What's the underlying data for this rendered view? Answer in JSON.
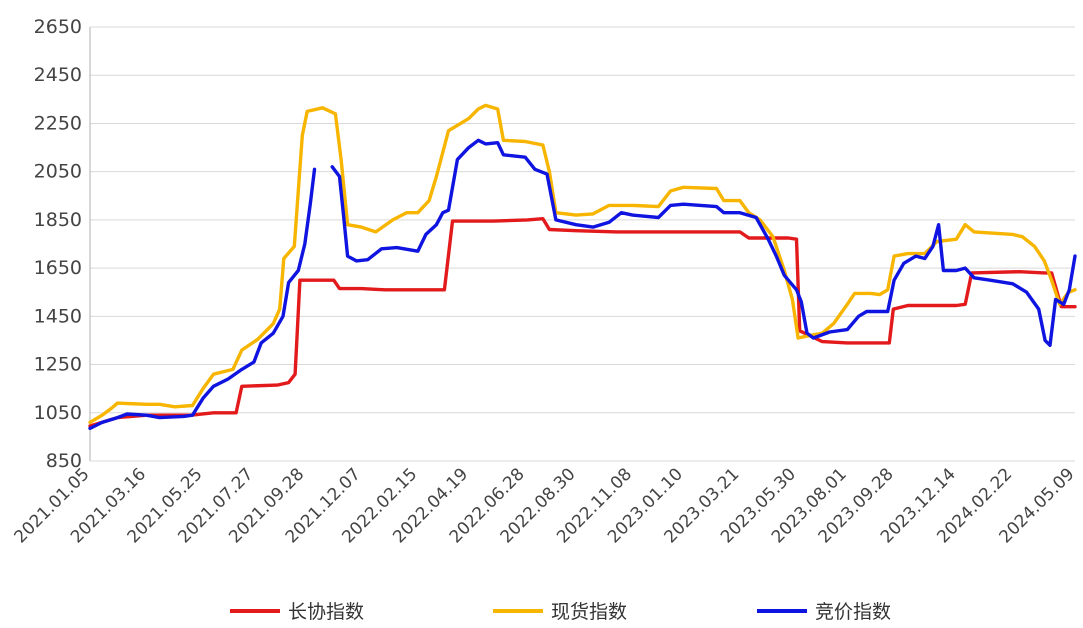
{
  "chart_data": {
    "type": "line",
    "title": "",
    "xlabel": "",
    "ylabel": "",
    "ylim": [
      850,
      2650
    ],
    "yticks": [
      850,
      1050,
      1250,
      1450,
      1650,
      1850,
      2050,
      2250,
      2450,
      2650
    ],
    "date_range": [
      "2021.01.05",
      "2024.05.09"
    ],
    "x_tick_labels": [
      "2021.01.05",
      "2021.03.16",
      "2021.05.25",
      "2021.07.27",
      "2021.09.28",
      "2021.12.07",
      "2022.02.15",
      "2022.04.19",
      "2022.06.28",
      "2022.08.30",
      "2022.11.08",
      "2023.01.10",
      "2023.03.21",
      "2023.05.30",
      "2023.08.01",
      "2023.09.28",
      "2023.12.14",
      "2024.02.22",
      "2024.05.09"
    ],
    "grid": true,
    "legend_position": "bottom",
    "series": [
      {
        "name": "长协指数",
        "color": "#e31a1c",
        "points": [
          [
            "2021.01.05",
            995
          ],
          [
            "2021.02.08",
            1030
          ],
          [
            "2021.03.16",
            1040
          ],
          [
            "2021.05.10",
            1040
          ],
          [
            "2021.06.07",
            1050
          ],
          [
            "2021.07.05",
            1050
          ],
          [
            "2021.07.12",
            1160
          ],
          [
            "2021.08.25",
            1165
          ],
          [
            "2021.09.08",
            1175
          ],
          [
            "2021.09.16",
            1210
          ],
          [
            "2021.09.22",
            1600
          ],
          [
            "2021.10.15",
            1600
          ],
          [
            "2021.11.03",
            1600
          ],
          [
            "2021.11.10",
            1565
          ],
          [
            "2021.12.07",
            1565
          ],
          [
            "2022.01.05",
            1560
          ],
          [
            "2022.03.01",
            1560
          ],
          [
            "2022.03.20",
            1560
          ],
          [
            "2022.03.30",
            1845
          ],
          [
            "2022.05.20",
            1845
          ],
          [
            "2022.07.01",
            1850
          ],
          [
            "2022.07.20",
            1855
          ],
          [
            "2022.07.28",
            1810
          ],
          [
            "2022.08.30",
            1805
          ],
          [
            "2022.10.20",
            1800
          ],
          [
            "2023.03.21",
            1800
          ],
          [
            "2023.04.01",
            1775
          ],
          [
            "2023.05.20",
            1775
          ],
          [
            "2023.05.30",
            1770
          ],
          [
            "2023.06.03",
            1390
          ],
          [
            "2023.07.01",
            1345
          ],
          [
            "2023.08.01",
            1340
          ],
          [
            "2023.09.22",
            1340
          ],
          [
            "2023.09.27",
            1480
          ],
          [
            "2023.10.15",
            1495
          ],
          [
            "2023.12.14",
            1495
          ],
          [
            "2023.12.25",
            1500
          ],
          [
            "2024.01.02",
            1630
          ],
          [
            "2024.03.01",
            1635
          ],
          [
            "2024.04.01",
            1630
          ],
          [
            "2024.04.10",
            1630
          ],
          [
            "2024.04.22",
            1490
          ],
          [
            "2024.05.09",
            1490
          ]
        ]
      },
      {
        "name": "现货指数",
        "color": "#f7b500",
        "points": [
          [
            "2021.01.05",
            1010
          ],
          [
            "2021.01.20",
            1040
          ],
          [
            "2021.02.01",
            1070
          ],
          [
            "2021.02.08",
            1090
          ],
          [
            "2021.03.16",
            1085
          ],
          [
            "2021.04.01",
            1085
          ],
          [
            "2021.04.20",
            1075
          ],
          [
            "2021.05.12",
            1080
          ],
          [
            "2021.05.25",
            1150
          ],
          [
            "2021.06.07",
            1210
          ],
          [
            "2021.07.01",
            1230
          ],
          [
            "2021.07.12",
            1310
          ],
          [
            "2021.08.01",
            1355
          ],
          [
            "2021.08.20",
            1420
          ],
          [
            "2021.08.28",
            1480
          ],
          [
            "2021.09.02",
            1690
          ],
          [
            "2021.09.15",
            1740
          ],
          [
            "2021.09.25",
            2200
          ],
          [
            "2021.10.01",
            2300
          ],
          [
            "2021.10.20",
            2315
          ],
          [
            "2021.11.05",
            2290
          ],
          [
            "2021.11.12",
            2100
          ],
          [
            "2021.11.20",
            1830
          ],
          [
            "2021.12.07",
            1820
          ],
          [
            "2021.12.25",
            1800
          ],
          [
            "2022.01.15",
            1850
          ],
          [
            "2022.02.01",
            1880
          ],
          [
            "2022.02.15",
            1880
          ],
          [
            "2022.03.01",
            1930
          ],
          [
            "2022.03.10",
            2030
          ],
          [
            "2022.03.25",
            2220
          ],
          [
            "2022.04.19",
            2270
          ],
          [
            "2022.05.01",
            2310
          ],
          [
            "2022.05.10",
            2325
          ],
          [
            "2022.05.25",
            2310
          ],
          [
            "2022.06.01",
            2180
          ],
          [
            "2022.06.28",
            2175
          ],
          [
            "2022.07.20",
            2160
          ],
          [
            "2022.07.28",
            2050
          ],
          [
            "2022.08.05",
            1880
          ],
          [
            "2022.08.30",
            1870
          ],
          [
            "2022.09.20",
            1875
          ],
          [
            "2022.10.10",
            1910
          ],
          [
            "2022.11.08",
            1910
          ],
          [
            "2022.12.10",
            1905
          ],
          [
            "2022.12.25",
            1970
          ],
          [
            "2023.01.10",
            1985
          ],
          [
            "2023.02.20",
            1980
          ],
          [
            "2023.03.01",
            1930
          ],
          [
            "2023.03.21",
            1930
          ],
          [
            "2023.04.01",
            1880
          ],
          [
            "2023.04.15",
            1850
          ],
          [
            "2023.05.01",
            1780
          ],
          [
            "2023.05.15",
            1640
          ],
          [
            "2023.05.25",
            1520
          ],
          [
            "2023.06.01",
            1360
          ],
          [
            "2023.06.15",
            1370
          ],
          [
            "2023.07.01",
            1380
          ],
          [
            "2023.07.15",
            1420
          ],
          [
            "2023.08.01",
            1500
          ],
          [
            "2023.08.10",
            1545
          ],
          [
            "2023.08.30",
            1545
          ],
          [
            "2023.09.10",
            1540
          ],
          [
            "2023.09.20",
            1560
          ],
          [
            "2023.09.28",
            1700
          ],
          [
            "2023.10.15",
            1710
          ],
          [
            "2023.11.05",
            1710
          ],
          [
            "2023.11.20",
            1760
          ],
          [
            "2023.12.14",
            1770
          ],
          [
            "2023.12.25",
            1830
          ],
          [
            "2024.01.05",
            1800
          ],
          [
            "2024.02.22",
            1790
          ],
          [
            "2024.03.05",
            1780
          ],
          [
            "2024.03.20",
            1740
          ],
          [
            "2024.04.01",
            1680
          ],
          [
            "2024.04.10",
            1600
          ],
          [
            "2024.04.20",
            1500
          ],
          [
            "2024.05.01",
            1550
          ],
          [
            "2024.05.09",
            1560
          ]
        ]
      },
      {
        "name": "竞价指数",
        "color": "#0f14e0",
        "points": [
          [
            "2021.01.05",
            985
          ],
          [
            "2021.01.20",
            1010
          ],
          [
            "2021.02.08",
            1030
          ],
          [
            "2021.02.20",
            1045
          ],
          [
            "2021.03.16",
            1040
          ],
          [
            "2021.04.01",
            1030
          ],
          [
            "2021.05.01",
            1035
          ],
          [
            "2021.05.12",
            1040
          ],
          [
            "2021.05.25",
            1110
          ],
          [
            "2021.06.07",
            1160
          ],
          [
            "2021.06.25",
            1190
          ],
          [
            "2021.07.12",
            1230
          ],
          [
            "2021.07.27",
            1260
          ],
          [
            "2021.08.05",
            1340
          ],
          [
            "2021.08.20",
            1380
          ],
          [
            "2021.09.01",
            1450
          ],
          [
            "2021.09.08",
            1590
          ],
          [
            "2021.09.20",
            1640
          ],
          [
            "2021.09.28",
            1750
          ],
          [
            "2021.10.05",
            1920
          ],
          [
            "2021.10.10",
            2060
          ],
          null,
          [
            "2021.11.01",
            2070
          ],
          [
            "2021.11.10",
            2030
          ],
          [
            "2021.11.15",
            1870
          ],
          [
            "2021.11.20",
            1700
          ],
          [
            "2021.12.01",
            1680
          ],
          [
            "2021.12.15",
            1685
          ],
          [
            "2022.01.01",
            1730
          ],
          [
            "2022.01.20",
            1735
          ],
          [
            "2022.02.15",
            1720
          ],
          [
            "2022.02.25",
            1790
          ],
          [
            "2022.03.10",
            1830
          ],
          [
            "2022.03.18",
            1880
          ],
          [
            "2022.03.25",
            1890
          ],
          [
            "2022.04.05",
            2100
          ],
          [
            "2022.04.19",
            2150
          ],
          [
            "2022.05.01",
            2180
          ],
          [
            "2022.05.10",
            2165
          ],
          [
            "2022.05.25",
            2170
          ],
          [
            "2022.06.01",
            2120
          ],
          [
            "2022.06.28",
            2110
          ],
          [
            "2022.07.10",
            2060
          ],
          [
            "2022.07.25",
            2040
          ],
          [
            "2022.08.05",
            1850
          ],
          [
            "2022.08.30",
            1830
          ],
          [
            "2022.09.20",
            1820
          ],
          [
            "2022.10.10",
            1840
          ],
          [
            "2022.10.25",
            1880
          ],
          [
            "2022.11.08",
            1870
          ],
          [
            "2022.12.10",
            1860
          ],
          [
            "2022.12.25",
            1910
          ],
          [
            "2023.01.10",
            1915
          ],
          [
            "2023.02.20",
            1905
          ],
          [
            "2023.03.01",
            1880
          ],
          [
            "2023.03.21",
            1880
          ],
          [
            "2023.04.10",
            1860
          ],
          [
            "2023.04.25",
            1770
          ],
          [
            "2023.05.05",
            1700
          ],
          [
            "2023.05.15",
            1620
          ],
          [
            "2023.05.30",
            1560
          ],
          [
            "2023.06.05",
            1510
          ],
          [
            "2023.06.12",
            1380
          ],
          [
            "2023.06.20",
            1360
          ],
          [
            "2023.07.10",
            1385
          ],
          [
            "2023.08.01",
            1395
          ],
          [
            "2023.08.15",
            1450
          ],
          [
            "2023.08.25",
            1470
          ],
          [
            "2023.09.20",
            1470
          ],
          [
            "2023.09.28",
            1600
          ],
          [
            "2023.10.10",
            1670
          ],
          [
            "2023.10.25",
            1700
          ],
          [
            "2023.11.05",
            1690
          ],
          [
            "2023.11.15",
            1740
          ],
          [
            "2023.11.22",
            1830
          ],
          [
            "2023.11.28",
            1640
          ],
          [
            "2023.12.14",
            1640
          ],
          [
            "2023.12.25",
            1650
          ],
          [
            "2024.01.05",
            1610
          ],
          [
            "2024.01.25",
            1600
          ],
          [
            "2024.02.22",
            1585
          ],
          [
            "2024.03.10",
            1550
          ],
          [
            "2024.03.25",
            1480
          ],
          [
            "2024.04.02",
            1350
          ],
          [
            "2024.04.08",
            1330
          ],
          [
            "2024.04.15",
            1520
          ],
          [
            "2024.04.25",
            1500
          ],
          [
            "2024.05.02",
            1560
          ],
          [
            "2024.05.09",
            1700
          ]
        ]
      }
    ]
  }
}
